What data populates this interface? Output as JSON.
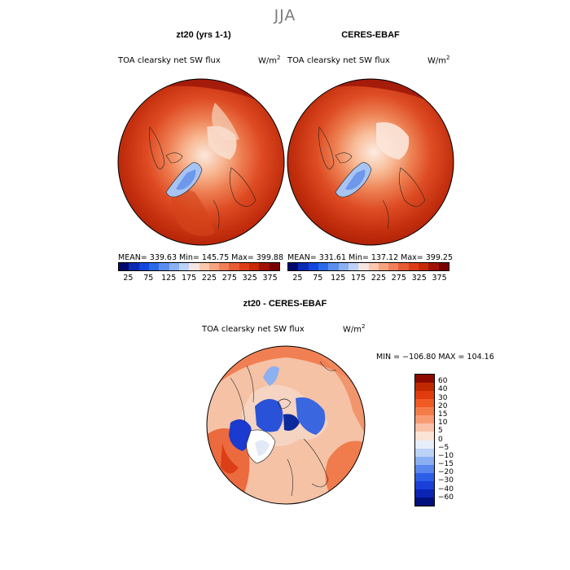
{
  "season": "JJA",
  "panels": [
    {
      "title": "zt20 (yrs 1-1)",
      "variable": "TOA clearsky net SW flux",
      "unit_base": "W/m",
      "unit_exp": "2",
      "stats": "MEAN= 339.63   Min= 145.75   Max= 399.88"
    },
    {
      "title": "CERES-EBAF",
      "variable": "TOA clearsky net SW flux",
      "unit_base": "W/m",
      "unit_exp": "2",
      "stats": "MEAN= 331.61   Min= 137.12   Max= 399.25"
    }
  ],
  "abs_colorbar": {
    "colors": [
      "#000a6e",
      "#0a2ab4",
      "#1246dc",
      "#2a6ae8",
      "#5a8eee",
      "#8ab0f2",
      "#bcd2f6",
      "#f4e6e0",
      "#fbc7ae",
      "#f7a47e",
      "#f1805a",
      "#e85c34",
      "#dd3e18",
      "#c82a08",
      "#a01405",
      "#780000"
    ],
    "ticks": [
      "25",
      "75",
      "125",
      "175",
      "225",
      "275",
      "325",
      "375"
    ]
  },
  "diff": {
    "title": "zt20 - CERES-EBAF",
    "variable": "TOA clearsky net SW flux",
    "unit_base": "W/m",
    "unit_exp": "2",
    "stats": "MIN = −106.80  MAX = 104.16"
  },
  "diff_colorbar": {
    "colors": [
      "#8c0a00",
      "#c02800",
      "#e03c0e",
      "#f05a24",
      "#f47c48",
      "#f79c72",
      "#f9c2a8",
      "#fbe4d6",
      "#e6eefb",
      "#bcd2f6",
      "#8ab0f2",
      "#5a86ee",
      "#2e5ee6",
      "#1a40d8",
      "#0c24b4",
      "#00107c"
    ],
    "ticks": [
      "60",
      "40",
      "30",
      "20",
      "15",
      "10",
      "5",
      "0",
      "−5",
      "−10",
      "−15",
      "−20",
      "−30",
      "−40",
      "−60"
    ]
  }
}
